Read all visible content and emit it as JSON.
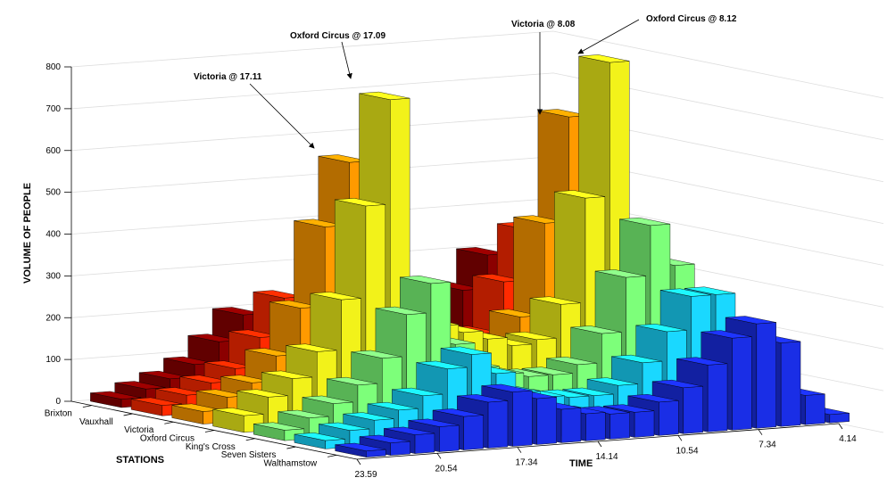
{
  "chart_data": {
    "type": "bar3d",
    "title": "",
    "zlabel": "VOLUME OF PEOPLE",
    "xlabel": "STATIONS",
    "ylabel": "TIME",
    "zlim": [
      0,
      800
    ],
    "z_ticks": [
      "0",
      "100",
      "200",
      "300",
      "400",
      "500",
      "600",
      "700",
      "800"
    ],
    "time_ticks": [
      "23.59",
      "20.54",
      "17.34",
      "14.14",
      "10.54",
      "7.34",
      "4.14"
    ],
    "grid": true,
    "hours": [
      4,
      5,
      6,
      7,
      8,
      9,
      10,
      11,
      12,
      13,
      14,
      15,
      16,
      17,
      18,
      19,
      20,
      21,
      22,
      23
    ],
    "series": [
      {
        "name": "Brixton",
        "color": "#8b0000",
        "values": [
          5,
          10,
          40,
          150,
          300,
          220,
          120,
          80,
          70,
          70,
          75,
          80,
          100,
          160,
          200,
          140,
          90,
          60,
          40,
          20
        ]
      },
      {
        "name": "Vauxhall",
        "color": "#ff2a00",
        "values": [
          5,
          15,
          60,
          200,
          380,
          260,
          140,
          90,
          80,
          80,
          85,
          95,
          130,
          220,
          260,
          170,
          100,
          70,
          45,
          25
        ]
      },
      {
        "name": "Victoria",
        "color": "#ff9a00",
        "values": [
          5,
          20,
          80,
          300,
          670,
          420,
          200,
          120,
          100,
          100,
          110,
          130,
          200,
          600,
          450,
          260,
          150,
          90,
          60,
          30
        ]
      },
      {
        "name": "Oxford Circus",
        "color": "#f2f21a",
        "values": [
          5,
          15,
          60,
          280,
          820,
          500,
          250,
          170,
          160,
          180,
          200,
          220,
          300,
          770,
          520,
          300,
          180,
          120,
          80,
          40
        ]
      },
      {
        "name": "King's Cross",
        "color": "#7dff7a",
        "values": [
          10,
          30,
          120,
          350,
          450,
          330,
          200,
          130,
          110,
          110,
          120,
          140,
          200,
          350,
          280,
          180,
          120,
          80,
          50,
          25
        ]
      },
      {
        "name": "Seven Sisters",
        "color": "#1ad8ff",
        "values": [
          15,
          50,
          180,
          300,
          300,
          220,
          150,
          100,
          80,
          80,
          85,
          100,
          150,
          200,
          170,
          110,
          80,
          60,
          40,
          20
        ]
      },
      {
        "name": "Walthamstow",
        "color": "#1a2ee6",
        "values": [
          20,
          70,
          200,
          250,
          220,
          160,
          110,
          80,
          60,
          60,
          65,
          80,
          110,
          130,
          110,
          80,
          60,
          45,
          30,
          15
        ]
      }
    ],
    "annotations": [
      {
        "text": "Oxford Circus @ 17.09"
      },
      {
        "text": "Victoria @ 17.11"
      },
      {
        "text": "Victoria @ 8.08"
      },
      {
        "text": "Oxford Circus @ 8.12"
      }
    ]
  }
}
